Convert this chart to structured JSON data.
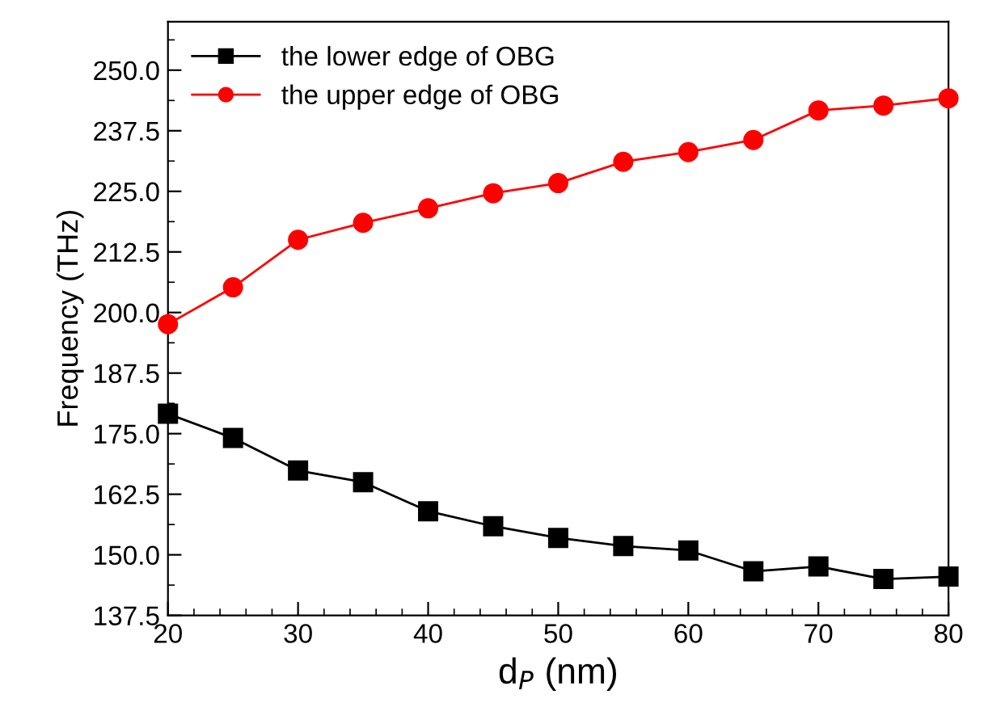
{
  "chart_data": {
    "type": "line",
    "xlabel": "d$_{P}$ (nm)",
    "ylabel": "Frequency (THz)",
    "x": [
      20,
      25,
      30,
      35,
      40,
      45,
      50,
      55,
      60,
      65,
      70,
      75,
      80
    ],
    "series": [
      {
        "name": "the lower edge of OBG",
        "color": "#000000",
        "marker": "square",
        "values": [
          179.1,
          174.1,
          167.4,
          165.0,
          159.0,
          155.9,
          153.5,
          151.8,
          150.9,
          146.6,
          147.6,
          145.0,
          145.5
        ]
      },
      {
        "name": "the upper edge of OBG",
        "color": "#ff0000",
        "marker": "circle",
        "values": [
          197.6,
          205.2,
          215.0,
          218.5,
          221.5,
          224.6,
          226.7,
          231.1,
          233.1,
          235.6,
          241.7,
          242.7,
          244.2
        ]
      }
    ],
    "xlim": [
      20,
      80
    ],
    "xticks": [
      20,
      30,
      40,
      50,
      60,
      70,
      80
    ],
    "ylim": [
      137.5,
      260
    ],
    "yticks": [
      {
        "value": 137.5,
        "label": "137.5"
      },
      {
        "value": 150,
        "label": "150.0"
      },
      {
        "value": 162.5,
        "label": "162.5"
      },
      {
        "value": 175,
        "label": "175.0"
      },
      {
        "value": 187.5,
        "label": "187.5"
      },
      {
        "value": 200,
        "label": "200.0"
      },
      {
        "value": 212.5,
        "label": "212.5"
      },
      {
        "value": 225,
        "label": "225.0"
      },
      {
        "value": 237.5,
        "label": "237.5"
      },
      {
        "value": 250,
        "label": "250.0"
      }
    ],
    "grid": false,
    "legend": "top left",
    "line_style": "solid"
  }
}
